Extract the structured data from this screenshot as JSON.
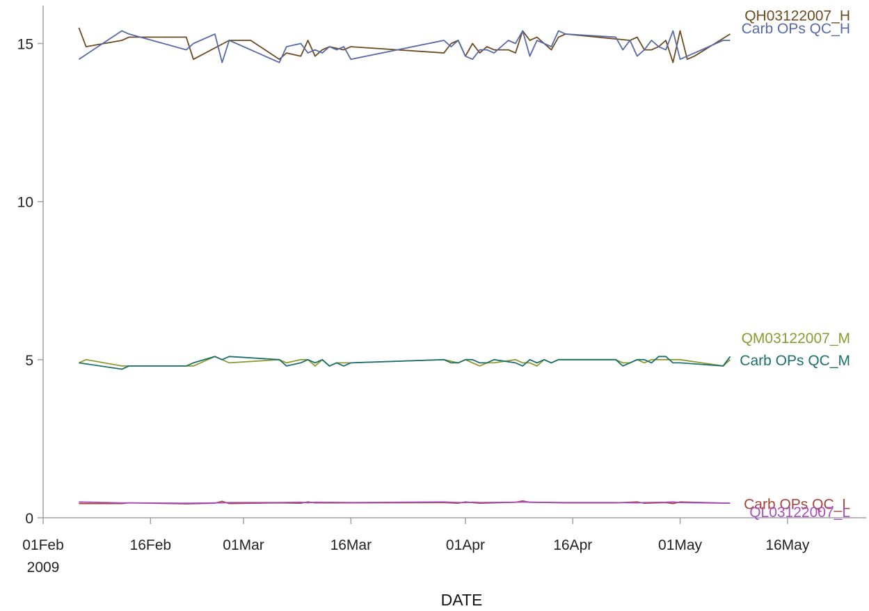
{
  "chart_data": {
    "type": "line",
    "title": "",
    "xlabel": "DATE",
    "ylabel": "",
    "x_type": "date",
    "xlim": [
      "2009-02-01",
      "2009-05-27"
    ],
    "ylim": [
      0,
      16.2
    ],
    "grid": false,
    "legend": "inline-right",
    "x_ticks": [
      {
        "date": "2009-02-01",
        "label": "01Feb",
        "sublabel": "2009"
      },
      {
        "date": "2009-02-16",
        "label": "16Feb",
        "sublabel": ""
      },
      {
        "date": "2009-03-01",
        "label": "01Mar",
        "sublabel": ""
      },
      {
        "date": "2009-03-16",
        "label": "16Mar",
        "sublabel": ""
      },
      {
        "date": "2009-04-01",
        "label": "01Apr",
        "sublabel": ""
      },
      {
        "date": "2009-04-16",
        "label": "16Apr",
        "sublabel": ""
      },
      {
        "date": "2009-05-01",
        "label": "01May",
        "sublabel": ""
      },
      {
        "date": "2009-05-16",
        "label": "16May",
        "sublabel": ""
      }
    ],
    "y_ticks": [
      {
        "value": 0,
        "label": "0"
      },
      {
        "value": 5,
        "label": "5"
      },
      {
        "value": 10,
        "label": "10"
      },
      {
        "value": 15,
        "label": "15"
      }
    ],
    "series": [
      {
        "name": "QH03122007_H",
        "color": "#6b4a1f",
        "label_value": 15.9,
        "x": [
          "2009-02-06",
          "2009-02-07",
          "2009-02-12",
          "2009-02-13",
          "2009-02-21",
          "2009-02-22",
          "2009-02-27",
          "2009-03-02",
          "2009-03-06",
          "2009-03-07",
          "2009-03-09",
          "2009-03-10",
          "2009-03-11",
          "2009-03-12",
          "2009-03-13",
          "2009-03-15",
          "2009-03-16",
          "2009-03-29",
          "2009-03-30",
          "2009-03-31",
          "2009-04-01",
          "2009-04-02",
          "2009-04-03",
          "2009-04-04",
          "2009-04-05",
          "2009-04-07",
          "2009-04-08",
          "2009-04-09",
          "2009-04-10",
          "2009-04-11",
          "2009-04-12",
          "2009-04-13",
          "2009-04-14",
          "2009-04-15",
          "2009-04-24",
          "2009-04-25",
          "2009-04-26",
          "2009-04-27",
          "2009-04-28",
          "2009-04-29",
          "2009-04-30",
          "2009-05-01",
          "2009-05-02",
          "2009-05-03",
          "2009-05-08"
        ],
        "y": [
          15.5,
          14.9,
          15.1,
          15.2,
          15.2,
          14.5,
          15.1,
          15.1,
          14.5,
          14.7,
          14.6,
          15.1,
          14.6,
          14.8,
          14.9,
          14.8,
          14.9,
          14.7,
          15.0,
          15.1,
          14.6,
          15.0,
          14.7,
          14.9,
          14.8,
          14.8,
          14.7,
          15.4,
          15.1,
          15.2,
          15.0,
          14.8,
          15.2,
          15.3,
          15.1,
          15.2,
          14.8,
          14.8,
          14.9,
          15.1,
          14.4,
          15.4,
          14.5,
          14.6,
          15.3
        ]
      },
      {
        "name": "Carb OPs QC_H",
        "color": "#5868a8",
        "label_value": 15.5,
        "x": [
          "2009-02-06",
          "2009-02-12",
          "2009-02-13",
          "2009-02-21",
          "2009-02-22",
          "2009-02-25",
          "2009-02-26",
          "2009-02-27",
          "2009-03-06",
          "2009-03-07",
          "2009-03-09",
          "2009-03-10",
          "2009-03-11",
          "2009-03-12",
          "2009-03-13",
          "2009-03-14",
          "2009-03-15",
          "2009-03-16",
          "2009-03-29",
          "2009-03-30",
          "2009-03-31",
          "2009-04-01",
          "2009-04-02",
          "2009-04-03",
          "2009-04-04",
          "2009-04-05",
          "2009-04-07",
          "2009-04-08",
          "2009-04-09",
          "2009-04-10",
          "2009-04-11",
          "2009-04-12",
          "2009-04-13",
          "2009-04-14",
          "2009-04-15",
          "2009-04-22",
          "2009-04-23",
          "2009-04-24",
          "2009-04-25",
          "2009-04-26",
          "2009-04-27",
          "2009-04-28",
          "2009-04-29",
          "2009-04-30",
          "2009-05-01",
          "2009-05-02",
          "2009-05-07",
          "2009-05-08"
        ],
        "y": [
          14.5,
          15.4,
          15.3,
          14.8,
          15.0,
          15.3,
          14.4,
          15.1,
          14.4,
          14.9,
          15.0,
          14.7,
          14.8,
          14.7,
          14.9,
          14.8,
          14.9,
          14.5,
          15.1,
          14.9,
          15.1,
          14.6,
          14.5,
          14.8,
          14.8,
          14.7,
          15.1,
          15.0,
          15.4,
          14.6,
          15.1,
          15.0,
          14.9,
          15.4,
          15.3,
          15.2,
          14.8,
          15.1,
          14.6,
          14.8,
          15.1,
          14.9,
          14.8,
          15.4,
          14.5,
          14.6,
          15.1,
          15.1
        ]
      },
      {
        "name": "QM03122007_M",
        "color": "#8c9a32",
        "label_value": 5.7,
        "x": [
          "2009-02-06",
          "2009-02-07",
          "2009-02-12",
          "2009-02-13",
          "2009-02-21",
          "2009-02-22",
          "2009-02-25",
          "2009-02-26",
          "2009-02-27",
          "2009-03-06",
          "2009-03-07",
          "2009-03-09",
          "2009-03-10",
          "2009-03-11",
          "2009-03-12",
          "2009-03-13",
          "2009-03-14",
          "2009-03-15",
          "2009-03-16",
          "2009-03-29",
          "2009-03-31",
          "2009-04-01",
          "2009-04-02",
          "2009-04-03",
          "2009-04-04",
          "2009-04-05",
          "2009-04-08",
          "2009-04-09",
          "2009-04-10",
          "2009-04-11",
          "2009-04-12",
          "2009-04-13",
          "2009-04-14",
          "2009-04-15",
          "2009-04-22",
          "2009-04-23",
          "2009-04-24",
          "2009-04-25",
          "2009-04-26",
          "2009-04-27",
          "2009-04-28",
          "2009-04-29",
          "2009-04-30",
          "2009-05-01",
          "2009-05-07",
          "2009-05-08"
        ],
        "y": [
          4.9,
          5.0,
          4.8,
          4.8,
          4.8,
          4.8,
          5.1,
          5.0,
          4.9,
          5.0,
          4.9,
          5.0,
          5.0,
          4.8,
          5.0,
          4.8,
          4.9,
          4.9,
          4.9,
          5.0,
          4.9,
          5.0,
          4.9,
          4.8,
          4.9,
          4.9,
          5.0,
          4.9,
          4.9,
          4.8,
          5.0,
          4.9,
          5.0,
          5.0,
          5.0,
          4.9,
          4.9,
          5.0,
          4.9,
          5.0,
          5.0,
          5.0,
          5.0,
          5.0,
          4.8,
          5.0
        ]
      },
      {
        "name": "Carb OPs QC_M",
        "color": "#1c6f6a",
        "label_value": 5.0,
        "x": [
          "2009-02-06",
          "2009-02-12",
          "2009-02-13",
          "2009-02-21",
          "2009-02-22",
          "2009-02-25",
          "2009-02-26",
          "2009-02-27",
          "2009-03-06",
          "2009-03-07",
          "2009-03-09",
          "2009-03-10",
          "2009-03-11",
          "2009-03-12",
          "2009-03-13",
          "2009-03-14",
          "2009-03-15",
          "2009-03-16",
          "2009-03-29",
          "2009-03-30",
          "2009-03-31",
          "2009-04-01",
          "2009-04-02",
          "2009-04-03",
          "2009-04-04",
          "2009-04-05",
          "2009-04-08",
          "2009-04-09",
          "2009-04-10",
          "2009-04-11",
          "2009-04-12",
          "2009-04-13",
          "2009-04-14",
          "2009-04-15",
          "2009-04-22",
          "2009-04-23",
          "2009-04-24",
          "2009-04-25",
          "2009-04-26",
          "2009-04-27",
          "2009-04-28",
          "2009-04-29",
          "2009-04-30",
          "2009-05-01",
          "2009-05-07",
          "2009-05-08"
        ],
        "y": [
          4.9,
          4.7,
          4.8,
          4.8,
          4.9,
          5.1,
          5.0,
          5.1,
          5.0,
          4.8,
          4.9,
          5.0,
          4.9,
          5.0,
          4.8,
          4.9,
          4.8,
          4.9,
          5.0,
          4.9,
          4.9,
          5.0,
          5.0,
          4.9,
          4.9,
          5.0,
          4.9,
          4.8,
          5.0,
          4.9,
          5.0,
          4.9,
          5.0,
          5.0,
          5.0,
          4.8,
          4.9,
          5.0,
          5.0,
          4.9,
          5.1,
          5.1,
          4.9,
          4.9,
          4.8,
          5.1
        ]
      },
      {
        "name": "Carb OPs QC_L",
        "color": "#a3473a",
        "label_value": 0.45,
        "x": [
          "2009-02-06",
          "2009-02-12",
          "2009-02-13",
          "2009-02-21",
          "2009-02-25",
          "2009-02-26",
          "2009-02-27",
          "2009-03-06",
          "2009-03-09",
          "2009-03-10",
          "2009-03-11",
          "2009-03-16",
          "2009-03-29",
          "2009-03-31",
          "2009-04-01",
          "2009-04-02",
          "2009-04-03",
          "2009-04-08",
          "2009-04-09",
          "2009-04-10",
          "2009-04-15",
          "2009-04-22",
          "2009-04-25",
          "2009-04-26",
          "2009-04-29",
          "2009-04-30",
          "2009-05-01",
          "2009-05-08"
        ],
        "y": [
          0.45,
          0.45,
          0.47,
          0.44,
          0.46,
          0.52,
          0.45,
          0.47,
          0.46,
          0.5,
          0.47,
          0.47,
          0.48,
          0.46,
          0.5,
          0.48,
          0.46,
          0.49,
          0.53,
          0.49,
          0.47,
          0.47,
          0.5,
          0.46,
          0.48,
          0.45,
          0.5,
          0.46
        ]
      },
      {
        "name": "QL03122007_L",
        "color": "#a64ec0",
        "label_value": 0.2,
        "x": [
          "2009-02-06",
          "2009-02-12",
          "2009-02-13",
          "2009-02-21",
          "2009-02-25",
          "2009-02-26",
          "2009-02-27",
          "2009-03-06",
          "2009-03-09",
          "2009-03-10",
          "2009-03-11",
          "2009-03-16",
          "2009-03-29",
          "2009-03-31",
          "2009-04-01",
          "2009-04-02",
          "2009-04-03",
          "2009-04-08",
          "2009-04-09",
          "2009-04-10",
          "2009-04-15",
          "2009-04-22",
          "2009-04-25",
          "2009-04-26",
          "2009-04-29",
          "2009-04-30",
          "2009-05-01",
          "2009-05-08"
        ],
        "y": [
          0.5,
          0.47,
          0.47,
          0.46,
          0.47,
          0.47,
          0.48,
          0.48,
          0.49,
          0.47,
          0.49,
          0.48,
          0.5,
          0.48,
          0.48,
          0.49,
          0.48,
          0.49,
          0.5,
          0.49,
          0.48,
          0.48,
          0.47,
          0.48,
          0.49,
          0.5,
          0.48,
          0.46
        ]
      }
    ]
  }
}
